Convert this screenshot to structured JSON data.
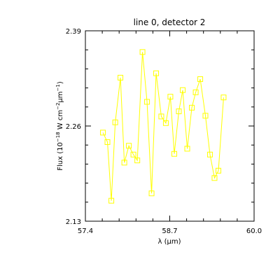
{
  "chart_data": {
    "type": "line",
    "title": "line 0, detector 2",
    "xlabel": "λ (μm)",
    "ylabel_parts": [
      "Flux (10",
      "−18",
      " W cm",
      "−2",
      "μm",
      "−1",
      ")"
    ],
    "xlim": [
      57.4,
      60.0
    ],
    "ylim": [
      2.13,
      2.39
    ],
    "xticks": [
      "57.4",
      "58.7",
      "60.0"
    ],
    "yticks": [
      "2.13",
      "2.26",
      "2.39"
    ],
    "series_color": "#ffff00",
    "grid": false,
    "points": [
      {
        "x": 57.67,
        "y": 2.251
      },
      {
        "x": 57.74,
        "y": 2.238
      },
      {
        "x": 57.8,
        "y": 2.158
      },
      {
        "x": 57.86,
        "y": 2.265
      },
      {
        "x": 57.94,
        "y": 2.326
      },
      {
        "x": 58.0,
        "y": 2.21
      },
      {
        "x": 58.07,
        "y": 2.233
      },
      {
        "x": 58.14,
        "y": 2.221
      },
      {
        "x": 58.2,
        "y": 2.213
      },
      {
        "x": 58.28,
        "y": 2.361
      },
      {
        "x": 58.35,
        "y": 2.293
      },
      {
        "x": 58.42,
        "y": 2.168
      },
      {
        "x": 58.49,
        "y": 2.332
      },
      {
        "x": 58.57,
        "y": 2.273
      },
      {
        "x": 58.64,
        "y": 2.264
      },
      {
        "x": 58.71,
        "y": 2.3
      },
      {
        "x": 58.77,
        "y": 2.222
      },
      {
        "x": 58.84,
        "y": 2.28
      },
      {
        "x": 58.9,
        "y": 2.309
      },
      {
        "x": 58.97,
        "y": 2.229
      },
      {
        "x": 59.04,
        "y": 2.285
      },
      {
        "x": 59.1,
        "y": 2.306
      },
      {
        "x": 59.17,
        "y": 2.324
      },
      {
        "x": 59.25,
        "y": 2.274
      },
      {
        "x": 59.32,
        "y": 2.221
      },
      {
        "x": 59.39,
        "y": 2.189
      },
      {
        "x": 59.45,
        "y": 2.199
      },
      {
        "x": 59.53,
        "y": 2.299
      }
    ]
  }
}
